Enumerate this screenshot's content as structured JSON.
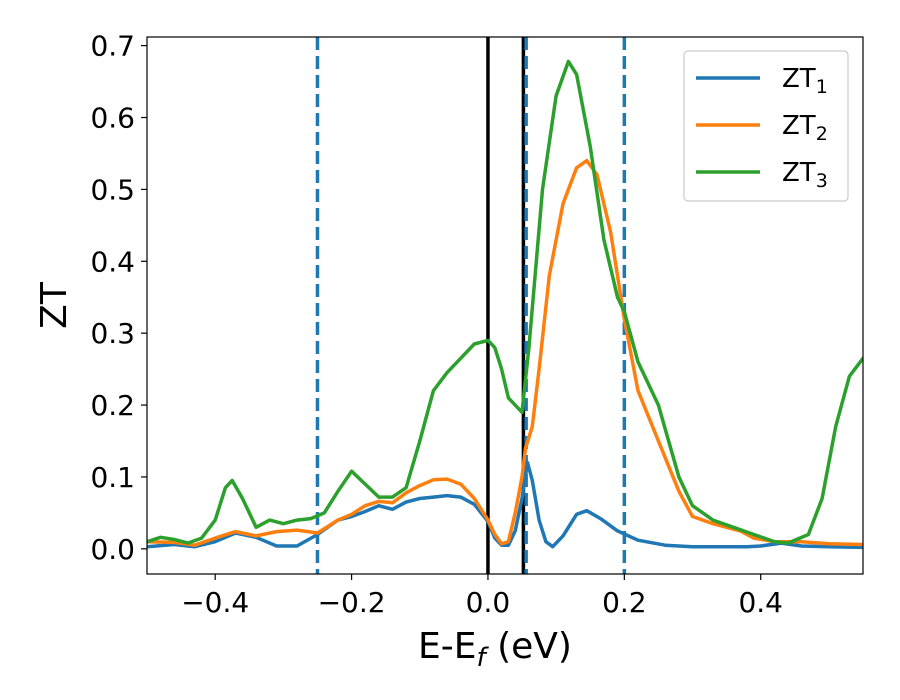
{
  "chart_data": {
    "type": "line",
    "title": "",
    "xlabel_main": "E-E",
    "xlabel_sub": "f",
    "xlabel_unit": " (eV)",
    "ylabel": "ZT",
    "xlim": [
      -0.5,
      0.55
    ],
    "ylim": [
      -0.035,
      0.712
    ],
    "xticks": [
      -0.4,
      -0.2,
      0.0,
      0.2,
      0.4
    ],
    "xtick_labels": [
      "−0.4",
      "−0.2",
      "0.0",
      "0.2",
      "0.4"
    ],
    "yticks": [
      0.0,
      0.1,
      0.2,
      0.3,
      0.4,
      0.5,
      0.6,
      0.7
    ],
    "ytick_labels": [
      "0.0",
      "0.1",
      "0.2",
      "0.3",
      "0.4",
      "0.5",
      "0.6",
      "0.7"
    ],
    "grid": false,
    "legend_position": "top-right",
    "vlines": [
      {
        "x": -0.25,
        "style": "dashed",
        "color": "#1f77b4"
      },
      {
        "x": 0.0,
        "style": "solid",
        "color": "#000000"
      },
      {
        "x": 0.052,
        "style": "solid",
        "color": "#000000"
      },
      {
        "x": 0.056,
        "style": "dashed",
        "color": "#1f77b4"
      },
      {
        "x": 0.2,
        "style": "dashed",
        "color": "#1f77b4"
      }
    ],
    "series": [
      {
        "name_main": "ZT",
        "name_sub": "1",
        "color": "#1f77b4",
        "points": [
          [
            -0.5,
            0.003
          ],
          [
            -0.46,
            0.006
          ],
          [
            -0.43,
            0.003
          ],
          [
            -0.4,
            0.01
          ],
          [
            -0.37,
            0.022
          ],
          [
            -0.34,
            0.016
          ],
          [
            -0.31,
            0.004
          ],
          [
            -0.28,
            0.004
          ],
          [
            -0.25,
            0.02
          ],
          [
            -0.22,
            0.04
          ],
          [
            -0.2,
            0.045
          ],
          [
            -0.18,
            0.052
          ],
          [
            -0.16,
            0.06
          ],
          [
            -0.14,
            0.055
          ],
          [
            -0.12,
            0.065
          ],
          [
            -0.1,
            0.07
          ],
          [
            -0.08,
            0.072
          ],
          [
            -0.06,
            0.074
          ],
          [
            -0.04,
            0.072
          ],
          [
            -0.02,
            0.062
          ],
          [
            0.0,
            0.038
          ],
          [
            0.01,
            0.015
          ],
          [
            0.02,
            0.005
          ],
          [
            0.03,
            0.005
          ],
          [
            0.04,
            0.025
          ],
          [
            0.05,
            0.07
          ],
          [
            0.058,
            0.12
          ],
          [
            0.065,
            0.095
          ],
          [
            0.075,
            0.04
          ],
          [
            0.085,
            0.01
          ],
          [
            0.095,
            0.003
          ],
          [
            0.11,
            0.018
          ],
          [
            0.13,
            0.048
          ],
          [
            0.145,
            0.053
          ],
          [
            0.165,
            0.042
          ],
          [
            0.19,
            0.025
          ],
          [
            0.22,
            0.012
          ],
          [
            0.26,
            0.005
          ],
          [
            0.3,
            0.003
          ],
          [
            0.35,
            0.003
          ],
          [
            0.38,
            0.003
          ],
          [
            0.4,
            0.004
          ],
          [
            0.43,
            0.008
          ],
          [
            0.46,
            0.004
          ],
          [
            0.5,
            0.003
          ],
          [
            0.55,
            0.002
          ]
        ]
      },
      {
        "name_main": "ZT",
        "name_sub": "2",
        "color": "#ff7f0e",
        "points": [
          [
            -0.5,
            0.01
          ],
          [
            -0.46,
            0.009
          ],
          [
            -0.43,
            0.005
          ],
          [
            -0.4,
            0.015
          ],
          [
            -0.37,
            0.024
          ],
          [
            -0.34,
            0.018
          ],
          [
            -0.31,
            0.024
          ],
          [
            -0.28,
            0.026
          ],
          [
            -0.25,
            0.022
          ],
          [
            -0.22,
            0.04
          ],
          [
            -0.2,
            0.048
          ],
          [
            -0.18,
            0.06
          ],
          [
            -0.16,
            0.066
          ],
          [
            -0.14,
            0.064
          ],
          [
            -0.12,
            0.078
          ],
          [
            -0.1,
            0.088
          ],
          [
            -0.08,
            0.096
          ],
          [
            -0.06,
            0.097
          ],
          [
            -0.04,
            0.09
          ],
          [
            -0.02,
            0.07
          ],
          [
            0.0,
            0.04
          ],
          [
            0.01,
            0.02
          ],
          [
            0.02,
            0.007
          ],
          [
            0.03,
            0.01
          ],
          [
            0.04,
            0.05
          ],
          [
            0.05,
            0.1
          ],
          [
            0.055,
            0.14
          ],
          [
            0.065,
            0.17
          ],
          [
            0.075,
            0.25
          ],
          [
            0.09,
            0.38
          ],
          [
            0.11,
            0.48
          ],
          [
            0.13,
            0.53
          ],
          [
            0.145,
            0.54
          ],
          [
            0.16,
            0.52
          ],
          [
            0.18,
            0.44
          ],
          [
            0.2,
            0.32
          ],
          [
            0.22,
            0.22
          ],
          [
            0.25,
            0.15
          ],
          [
            0.28,
            0.08
          ],
          [
            0.3,
            0.045
          ],
          [
            0.33,
            0.035
          ],
          [
            0.35,
            0.03
          ],
          [
            0.37,
            0.025
          ],
          [
            0.39,
            0.015
          ],
          [
            0.42,
            0.01
          ],
          [
            0.46,
            0.01
          ],
          [
            0.5,
            0.007
          ],
          [
            0.55,
            0.006
          ]
        ]
      },
      {
        "name_main": "ZT",
        "name_sub": "3",
        "color": "#2ca02c",
        "points": [
          [
            -0.5,
            0.01
          ],
          [
            -0.48,
            0.016
          ],
          [
            -0.46,
            0.013
          ],
          [
            -0.44,
            0.008
          ],
          [
            -0.42,
            0.015
          ],
          [
            -0.4,
            0.04
          ],
          [
            -0.385,
            0.085
          ],
          [
            -0.375,
            0.095
          ],
          [
            -0.36,
            0.07
          ],
          [
            -0.34,
            0.03
          ],
          [
            -0.32,
            0.04
          ],
          [
            -0.3,
            0.035
          ],
          [
            -0.28,
            0.04
          ],
          [
            -0.26,
            0.042
          ],
          [
            -0.24,
            0.05
          ],
          [
            -0.22,
            0.08
          ],
          [
            -0.2,
            0.108
          ],
          [
            -0.18,
            0.09
          ],
          [
            -0.16,
            0.072
          ],
          [
            -0.14,
            0.072
          ],
          [
            -0.12,
            0.085
          ],
          [
            -0.1,
            0.15
          ],
          [
            -0.08,
            0.22
          ],
          [
            -0.06,
            0.245
          ],
          [
            -0.04,
            0.265
          ],
          [
            -0.02,
            0.285
          ],
          [
            0.0,
            0.29
          ],
          [
            0.01,
            0.28
          ],
          [
            0.02,
            0.25
          ],
          [
            0.03,
            0.21
          ],
          [
            0.04,
            0.2
          ],
          [
            0.05,
            0.19
          ],
          [
            0.06,
            0.28
          ],
          [
            0.08,
            0.5
          ],
          [
            0.1,
            0.63
          ],
          [
            0.118,
            0.678
          ],
          [
            0.13,
            0.66
          ],
          [
            0.15,
            0.56
          ],
          [
            0.17,
            0.43
          ],
          [
            0.19,
            0.35
          ],
          [
            0.2,
            0.33
          ],
          [
            0.22,
            0.26
          ],
          [
            0.25,
            0.2
          ],
          [
            0.28,
            0.1
          ],
          [
            0.3,
            0.06
          ],
          [
            0.33,
            0.04
          ],
          [
            0.36,
            0.03
          ],
          [
            0.39,
            0.02
          ],
          [
            0.42,
            0.01
          ],
          [
            0.44,
            0.008
          ],
          [
            0.47,
            0.02
          ],
          [
            0.49,
            0.07
          ],
          [
            0.51,
            0.17
          ],
          [
            0.53,
            0.24
          ],
          [
            0.55,
            0.265
          ]
        ]
      }
    ]
  }
}
